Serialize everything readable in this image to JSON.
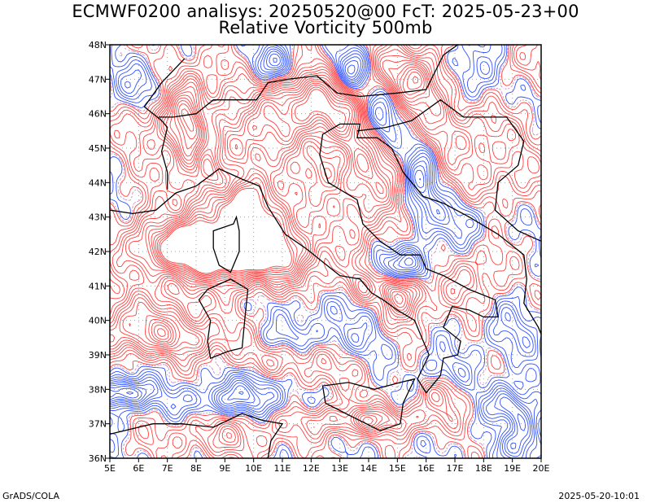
{
  "header": {
    "line1": "ECMWF0200 analisys: 20250520@00 FcT: 2025-05-23+00",
    "line2": "Relative Vorticity 500mb"
  },
  "footer": {
    "left": "GrADS/COLA",
    "right": "2025-05-20-10:01"
  },
  "map": {
    "lon_range": [
      5,
      20
    ],
    "lat_range": [
      36,
      48
    ],
    "lon_ticks": [
      "5E",
      "6E",
      "7E",
      "8E",
      "9E",
      "10E",
      "11E",
      "12E",
      "13E",
      "14E",
      "15E",
      "16E",
      "17E",
      "18E",
      "19E",
      "20E"
    ],
    "lat_ticks": [
      "36N",
      "37N",
      "38N",
      "39N",
      "40N",
      "41N",
      "42N",
      "43N",
      "44N",
      "45N",
      "46N",
      "47N",
      "48N"
    ],
    "grid": true,
    "colors": {
      "positive": "#ff4040",
      "negative": "#3050ff",
      "zero": "#c080c0",
      "coast": "#000000",
      "grid": "#a0a0a0"
    }
  }
}
